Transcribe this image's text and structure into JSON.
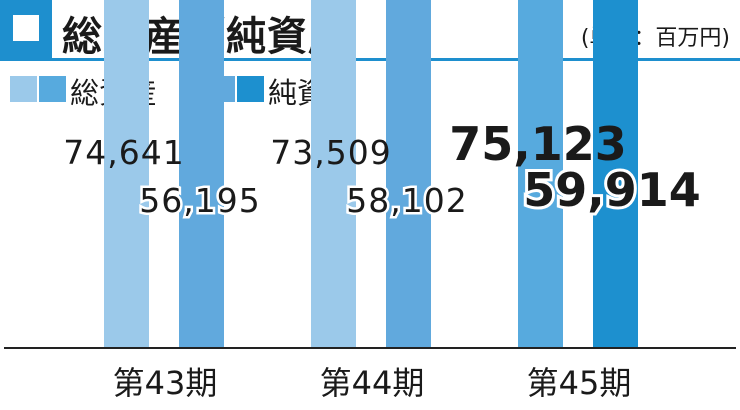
{
  "header": {
    "title": "総資産／純資産",
    "unit": "(単位：百万円)"
  },
  "legend": {
    "total_assets": "総資産",
    "net_assets": "純資産"
  },
  "colors": {
    "accent": "#1e8fce",
    "total_light": "#9bc9ea",
    "total_mid": "#57aade",
    "net_light": "#61a9dd",
    "net_dark": "#1d90cf"
  },
  "chart_data": {
    "type": "bar",
    "title": "総資産／純資産",
    "subtitle": "(単位：百万円)",
    "categories": [
      "第43期",
      "第44期",
      "第45期"
    ],
    "series": [
      {
        "name": "総資産",
        "values": [
          74641,
          73509,
          75123
        ],
        "labels": [
          "74,641",
          "73,509",
          "75,123"
        ]
      },
      {
        "name": "純資産",
        "values": [
          56195,
          58102,
          59914
        ],
        "labels": [
          "56,195",
          "58,102",
          "59,914"
        ]
      }
    ],
    "highlight_index": 2,
    "xlabel": "",
    "ylabel": "",
    "grid": false,
    "legend_position": "top-left"
  }
}
